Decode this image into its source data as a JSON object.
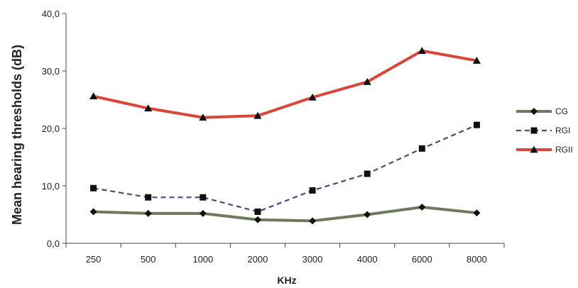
{
  "chart_data": {
    "type": "line",
    "title": "",
    "xlabel": "KHz",
    "ylabel": "Mean hearing thresholds (dB)",
    "categories": [
      "250",
      "500",
      "1000",
      "2000",
      "3000",
      "4000",
      "6000",
      "8000"
    ],
    "ylim": [
      0,
      40
    ],
    "yticks": [
      "0,0",
      "10,0",
      "20,0",
      "30,0",
      "40,0"
    ],
    "grid": false,
    "legend_position": "right",
    "series": [
      {
        "name": "CG",
        "values": [
          5.5,
          5.2,
          5.2,
          4.1,
          3.9,
          5.0,
          6.3,
          5.3
        ],
        "color": "#6e7a5e",
        "marker": "diamond",
        "dash": "solid"
      },
      {
        "name": "RGI",
        "values": [
          9.6,
          8.0,
          8.0,
          5.5,
          9.2,
          12.1,
          16.5,
          20.6
        ],
        "color": "#3f4f7a",
        "marker": "square",
        "dash": "dashed"
      },
      {
        "name": "RGII",
        "values": [
          25.6,
          23.5,
          21.9,
          22.2,
          25.4,
          28.1,
          33.5,
          31.8
        ],
        "color": "#d8473a",
        "marker": "triangle",
        "dash": "solid"
      }
    ]
  }
}
